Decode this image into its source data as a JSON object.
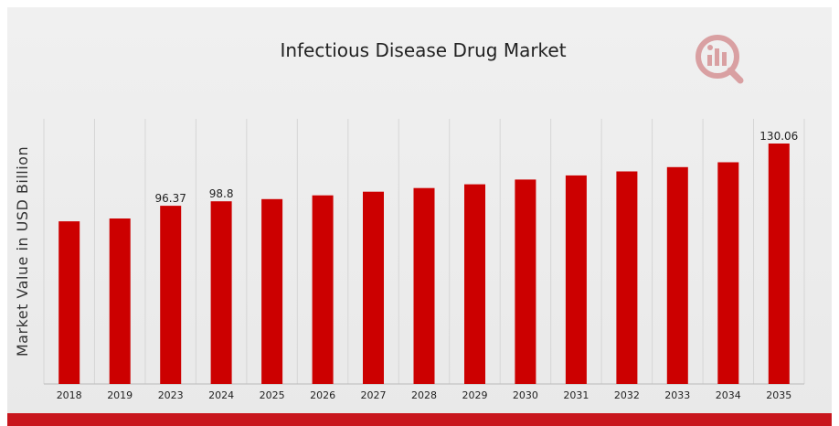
{
  "colors": {
    "bar": "#cc0000",
    "grid": "#d6d6d6",
    "bottom_bar": "#c8161d",
    "logo": "#d9a0a2"
  },
  "logo_icon": "magnifier-chart-logo-icon",
  "chart_data": {
    "type": "bar",
    "title": "Infectious Disease Drug Market",
    "xlabel": "",
    "ylabel": "Market Value in USD Billion",
    "categories": [
      "2018",
      "2019",
      "2023",
      "2024",
      "2025",
      "2026",
      "2027",
      "2028",
      "2029",
      "2030",
      "2031",
      "2032",
      "2033",
      "2034",
      "2035"
    ],
    "values": [
      88.0,
      89.5,
      96.37,
      98.8,
      100.0,
      102.0,
      104.0,
      106.0,
      108.0,
      110.6,
      112.8,
      115.0,
      117.3,
      119.9,
      130.06
    ],
    "data_labels": [
      "",
      "",
      "96.37",
      "98.8",
      "",
      "",
      "",
      "",
      "",
      "",
      "",
      "",
      "",
      "",
      "130.06"
    ],
    "ylim": [
      0,
      135
    ],
    "grid": "vertical",
    "legend": "none"
  }
}
